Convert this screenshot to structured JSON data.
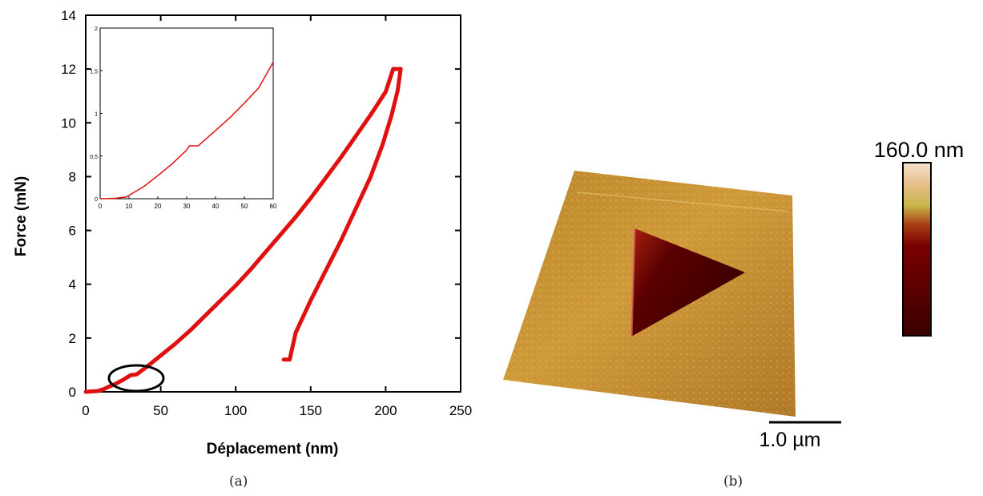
{
  "chart_data": [
    {
      "type": "line",
      "xlabel": "Déplacement (nm)",
      "ylabel": "Force (mN)",
      "xlim": [
        0,
        250
      ],
      "ylim": [
        0,
        14
      ],
      "x_ticks": [
        "0",
        "50",
        "100",
        "150",
        "200",
        "250"
      ],
      "y_ticks": [
        "0",
        "2",
        "4",
        "6",
        "8",
        "10",
        "12",
        "14"
      ],
      "grid": false,
      "annotation": "circle around the pop-in at ~32 nm, 0.6 mN",
      "series": [
        {
          "role": "loading",
          "color": "#e01010",
          "x": [
            0,
            8,
            12,
            15,
            20,
            25,
            30,
            34,
            40,
            50,
            60,
            70,
            80,
            90,
            100,
            110,
            120,
            130,
            140,
            150,
            160,
            170,
            180,
            190,
            200,
            205
          ],
          "y": [
            0,
            0.03,
            0.1,
            0.18,
            0.3,
            0.45,
            0.62,
            0.65,
            0.9,
            1.35,
            1.8,
            2.3,
            2.85,
            3.4,
            3.95,
            4.55,
            5.2,
            5.85,
            6.5,
            7.2,
            7.95,
            8.7,
            9.5,
            10.3,
            11.15,
            12.0
          ]
        },
        {
          "role": "hold",
          "color": "#e01010",
          "x": [
            205,
            210
          ],
          "y": [
            12.0,
            12.0
          ]
        },
        {
          "role": "unloading",
          "color": "#e01010",
          "x": [
            210,
            208,
            204,
            198,
            190,
            180,
            170,
            160,
            150,
            140,
            136,
            132
          ],
          "y": [
            12.0,
            11.2,
            10.3,
            9.2,
            8.0,
            6.8,
            5.6,
            4.5,
            3.4,
            2.2,
            1.2,
            1.2
          ]
        }
      ]
    },
    {
      "type": "line",
      "role": "inset",
      "xlim": [
        0,
        60
      ],
      "ylim": [
        0,
        2
      ],
      "x_ticks": [
        "0",
        "10",
        "20",
        "30",
        "40",
        "50",
        "60"
      ],
      "y_ticks": [
        "0",
        "0,5",
        "1",
        "1,5",
        "2"
      ],
      "series": [
        {
          "color": "#e01010",
          "x": [
            0,
            5,
            9,
            10,
            12,
            15,
            20,
            25,
            30,
            31,
            34,
            35,
            40,
            45,
            50,
            55,
            60
          ],
          "y": [
            0,
            0.005,
            0.02,
            0.04,
            0.08,
            0.14,
            0.27,
            0.41,
            0.57,
            0.62,
            0.62,
            0.65,
            0.8,
            0.95,
            1.12,
            1.3,
            1.6
          ]
        }
      ]
    }
  ],
  "captions": {
    "left": "(a)",
    "right": "(b)"
  },
  "afm_image": {
    "colorbar_max_label": "160.0 nm",
    "scale_bar_label": "1.0 µm",
    "colormap": [
      "#f6e6d0",
      "#e8c090",
      "#c8b048",
      "#b04010",
      "#7a0000",
      "#480000"
    ],
    "surface_color": "#c89030",
    "indent_color": "#3a0000"
  }
}
